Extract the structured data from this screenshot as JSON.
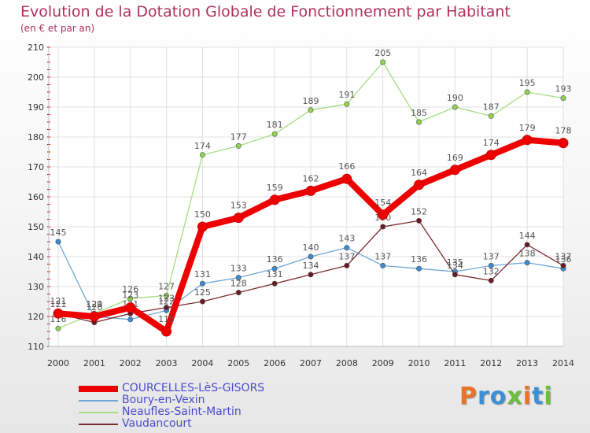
{
  "header": {
    "title": "Evolution de la Dotation Globale de Fonctionnement par Habitant",
    "subtitle": "(en € et par an)"
  },
  "logo": {
    "text": "Proxiti",
    "colors": [
      "#e8742a",
      "#3b8fd6",
      "#3b8fd6",
      "#6cbf3a",
      "#e8742a",
      "#3b8fd6",
      "#6cbf3a"
    ]
  },
  "colors": {
    "title": "#b0305e",
    "axis_text": "#333333",
    "grid": "#e0e0e0",
    "tick_marks": "#cc0000"
  },
  "chart_data": {
    "type": "line",
    "x": [
      2000,
      2001,
      2002,
      2003,
      2004,
      2005,
      2006,
      2007,
      2008,
      2009,
      2010,
      2011,
      2012,
      2013,
      2014
    ],
    "ylim": [
      110,
      210
    ],
    "yticks": [
      110,
      120,
      130,
      140,
      150,
      160,
      170,
      180,
      190,
      200,
      210
    ],
    "grid": true,
    "legend_position": "bottom-left",
    "series": [
      {
        "name": "Neaufles-Saint-Martin",
        "color": "#8fd44f",
        "line_color": "#a6dd80",
        "width": 1.3,
        "values": [
          116,
          121,
          126,
          127,
          174,
          177,
          181,
          189,
          191,
          205,
          185,
          190,
          187,
          195,
          193
        ],
        "labels": [
          "116",
          "121",
          "126",
          "127",
          "174",
          "177",
          "181",
          "189",
          "191",
          "205",
          "185",
          "190",
          "187",
          "195",
          "193"
        ]
      },
      {
        "name": "Boury-en-Vexin",
        "color": "#3a8bd0",
        "line_color": "#6fa7d6",
        "width": 1.3,
        "values": [
          145,
          120,
          119,
          122,
          131,
          133,
          136,
          140,
          143,
          137,
          136,
          135,
          137,
          138,
          136
        ],
        "labels": [
          "145",
          "120",
          "",
          "122",
          "131",
          "133",
          "136",
          "140",
          "143",
          "137",
          "136",
          "135",
          "137",
          "138",
          "136"
        ]
      },
      {
        "name": "Vaudancourt",
        "color": "#6b1a22",
        "line_color": "#7a2a30",
        "width": 1.3,
        "values": [
          121,
          118,
          121,
          123,
          125,
          128,
          131,
          134,
          137,
          150,
          152,
          134,
          132,
          144,
          137
        ],
        "labels": [
          "121",
          "",
          "121",
          "123",
          "125",
          "128",
          "131",
          "134",
          "137",
          "150",
          "152",
          "134",
          "132",
          "144",
          "137"
        ]
      },
      {
        "name": "COURCELLES-LèS-GISORS",
        "color": "#ee0000",
        "line_color": "#ee0000",
        "width": 8,
        "values": [
          121,
          120,
          123,
          115,
          150,
          153,
          159,
          162,
          166,
          154,
          164,
          169,
          174,
          179,
          178
        ],
        "labels": [
          "121",
          "120",
          "123",
          "115",
          "150",
          "153",
          "159",
          "162",
          "166",
          "154",
          "164",
          "169",
          "174",
          "179",
          "178"
        ]
      }
    ]
  },
  "legend": {
    "items": [
      {
        "label": "COURCELLES-LèS-GISORS",
        "color": "#ee0000",
        "text_color": "#4a4ad0",
        "thickness": 8
      },
      {
        "label": "Boury-en-Vexin",
        "color": "#6fa7d6",
        "text_color": "#4a4ad0",
        "thickness": 2
      },
      {
        "label": "Neaufles-Saint-Martin",
        "color": "#a6dd80",
        "text_color": "#4a4ad0",
        "thickness": 2
      },
      {
        "label": "Vaudancourt",
        "color": "#7a2a30",
        "text_color": "#4a4ad0",
        "thickness": 2
      }
    ]
  }
}
